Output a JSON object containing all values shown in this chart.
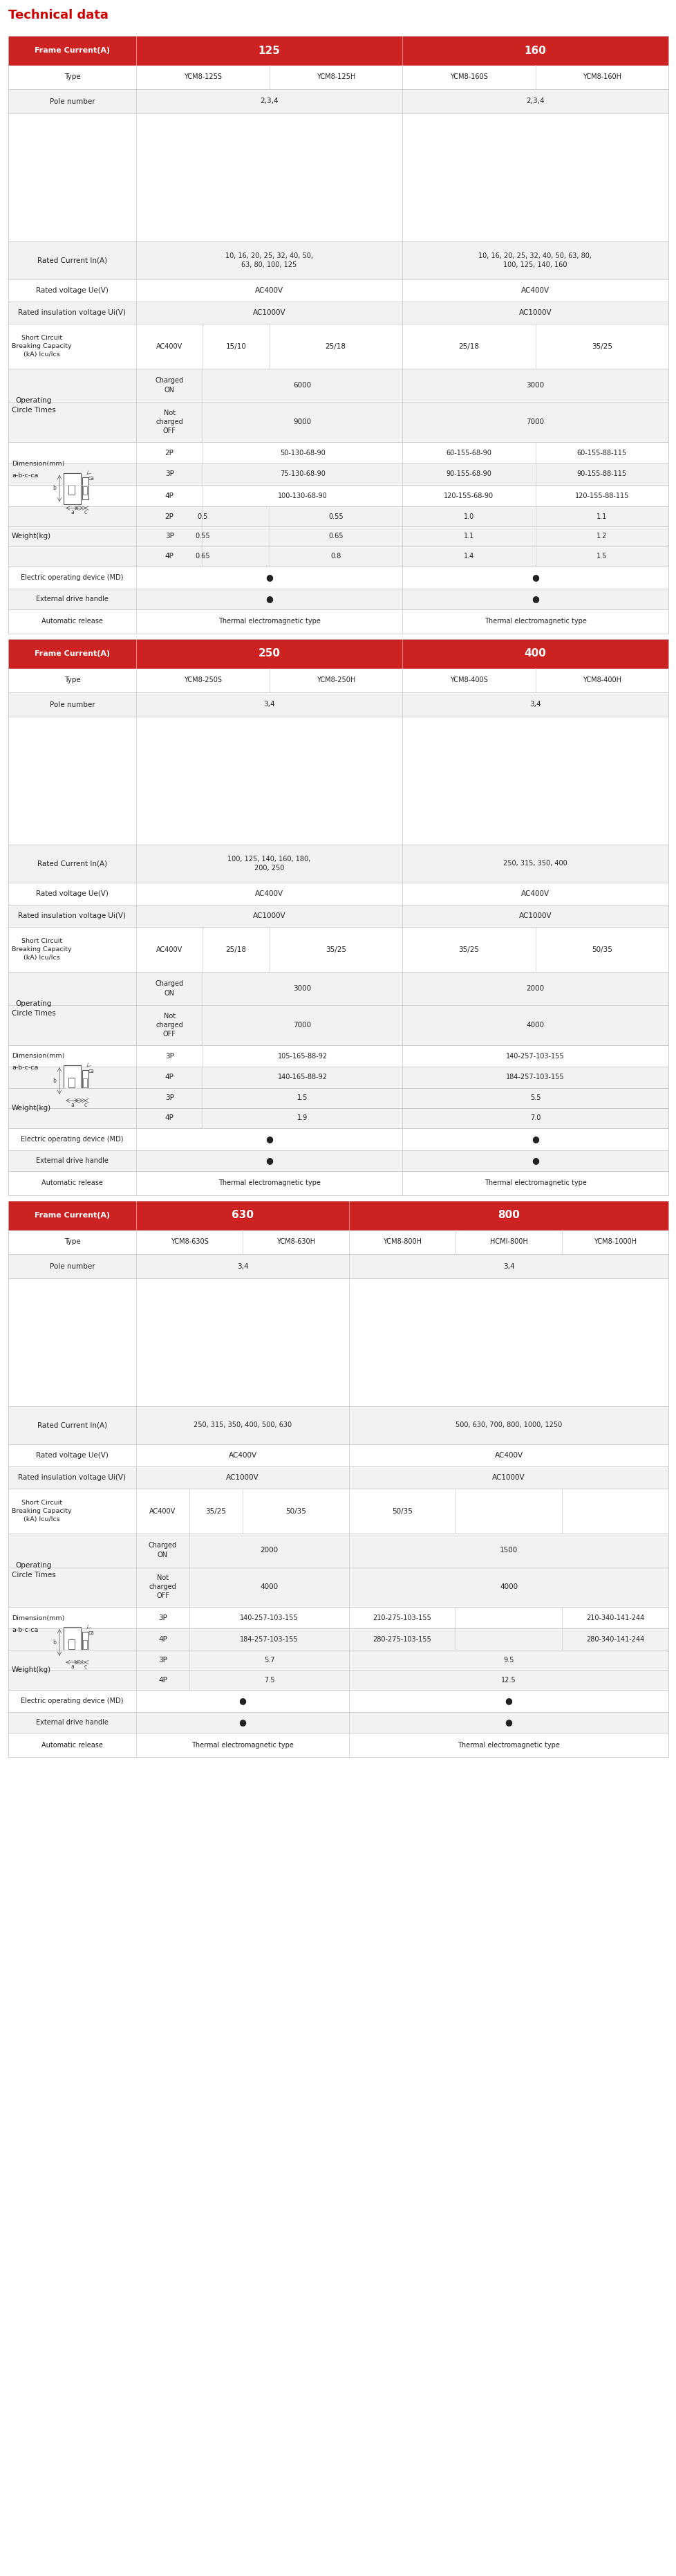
{
  "title": "Technical data",
  "title_color": "#cc0000",
  "header_bg": "#cc2222",
  "header_text_color": "#ffffff",
  "row_alt_color": "#f2f2f2",
  "row_white_color": "#ffffff",
  "border_color": "#cccccc",
  "text_color": "#333333",
  "tables": [
    {
      "frame_labels": [
        "125",
        "160"
      ],
      "frame_col_spans": [
        2,
        2
      ],
      "types": [
        "YCM8-125S",
        "YCM8-125H",
        "YCM8-160S",
        "YCM8-160H"
      ],
      "pole_number_groups": [
        "2,3,4",
        "2,3,4"
      ],
      "rated_current_groups": [
        "10, 16, 20, 25, 32, 40, 50,\n63, 80, 100, 125",
        "10, 16, 20, 25, 32, 40, 50, 63, 80,\n100, 125, 140, 160"
      ],
      "rated_voltage_groups": [
        "AC400V",
        "AC400V"
      ],
      "insulation_voltage_groups": [
        "AC1000V",
        "AC1000V"
      ],
      "sc_sub_label": "AC400V",
      "sc_values": [
        "15/10",
        "25/18",
        "25/18",
        "35/25"
      ],
      "op_charged_groups": [
        "6000",
        "3000"
      ],
      "op_not_charged_groups": [
        "9000",
        "7000"
      ],
      "dim_label_col_span": 1,
      "dim_rows": [
        {
          "pole": "2P",
          "vals": [
            "50-130-68-90",
            "",
            "60-155-68-90",
            "60-155-88-115"
          ]
        },
        {
          "pole": "3P",
          "vals": [
            "75-130-68-90",
            "",
            "90-155-68-90",
            "90-155-88-115"
          ]
        },
        {
          "pole": "4P",
          "vals": [
            "100-130-68-90",
            "",
            "120-155-68-90",
            "120-155-88-115"
          ]
        }
      ],
      "dim_merge_125": true,
      "weight_rows": [
        {
          "pole": "2P",
          "vals": [
            "0.5",
            "0.55",
            "1.0",
            "1.1"
          ]
        },
        {
          "pole": "3P",
          "vals": [
            "0.55",
            "0.65",
            "1.1",
            "1.2"
          ]
        },
        {
          "pole": "4P",
          "vals": [
            "0.65",
            "0.8",
            "1.4",
            "1.5"
          ]
        }
      ],
      "weight_merge_125": false,
      "electric_op_groups": [
        true,
        true
      ],
      "external_drive_groups": [
        true,
        true
      ],
      "auto_release_groups": [
        "Thermal electromagnetic type",
        "Thermal electromagnetic type"
      ]
    },
    {
      "frame_labels": [
        "250",
        "400"
      ],
      "frame_col_spans": [
        2,
        2
      ],
      "types": [
        "YCM8-250S",
        "YCM8-250H",
        "YCM8-400S",
        "YCM8-400H"
      ],
      "pole_number_groups": [
        "3,4",
        "3,4"
      ],
      "rated_current_groups": [
        "100, 125, 140, 160, 180,\n200, 250",
        "250, 315, 350, 400"
      ],
      "rated_voltage_groups": [
        "AC400V",
        "AC400V"
      ],
      "insulation_voltage_groups": [
        "AC1000V",
        "AC1000V"
      ],
      "sc_sub_label": "AC400V",
      "sc_values": [
        "25/18",
        "35/25",
        "35/25",
        "50/35"
      ],
      "op_charged_groups": [
        "3000",
        "2000"
      ],
      "op_not_charged_groups": [
        "7000",
        "4000"
      ],
      "dim_rows": [
        {
          "pole": "3P",
          "vals": [
            "105-165-88-92",
            "",
            "140-257-103-155",
            ""
          ]
        },
        {
          "pole": "4P",
          "vals": [
            "140-165-88-92",
            "",
            "184-257-103-155",
            ""
          ]
        }
      ],
      "dim_merge_125": true,
      "weight_rows": [
        {
          "pole": "3P",
          "vals": [
            "1.5",
            "",
            "5.5",
            ""
          ]
        },
        {
          "pole": "4P",
          "vals": [
            "1.9",
            "",
            "7.0",
            ""
          ]
        }
      ],
      "weight_merge_125": true,
      "electric_op_groups": [
        true,
        true
      ],
      "external_drive_groups": [
        true,
        true
      ],
      "auto_release_groups": [
        "Thermal electromagnetic type",
        "Thermal electromagnetic type"
      ]
    },
    {
      "frame_labels": [
        "630",
        "800"
      ],
      "frame_col_spans": [
        2,
        3
      ],
      "types": [
        "YCM8-630S",
        "YCM8-630H",
        "YCM8-800H",
        "HCMI-800H",
        "YCM8-1000H"
      ],
      "pole_number_groups": [
        "3,4",
        "3,4"
      ],
      "rated_current_groups": [
        "250, 315, 350, 400, 500, 630",
        "500, 630, 700, 800, 1000, 1250"
      ],
      "rated_voltage_groups": [
        "AC400V",
        "AC400V"
      ],
      "insulation_voltage_groups": [
        "AC1000V",
        "AC1000V"
      ],
      "sc_sub_label": "AC400V",
      "sc_values": [
        "35/25",
        "50/35",
        "50/35",
        "",
        ""
      ],
      "op_charged_groups": [
        "2000",
        "1500"
      ],
      "op_not_charged_groups": [
        "4000",
        "4000"
      ],
      "dim_rows": [
        {
          "pole": "3P",
          "vals": [
            "140-257-103-155",
            "",
            "210-275-103-155",
            "",
            "210-340-141-244"
          ]
        },
        {
          "pole": "4P",
          "vals": [
            "184-257-103-155",
            "",
            "280-275-103-155",
            "",
            "280-340-141-244"
          ]
        }
      ],
      "dim_merge_125": true,
      "weight_rows": [
        {
          "pole": "3P",
          "vals": [
            "5.7",
            "",
            "9.5",
            "",
            ""
          ]
        },
        {
          "pole": "4P",
          "vals": [
            "7.5",
            "",
            "12.5",
            "",
            ""
          ]
        }
      ],
      "weight_merge_125": true,
      "electric_op_groups": [
        true,
        true
      ],
      "external_drive_groups": [
        true,
        true
      ],
      "auto_release_groups": [
        "Thermal electromagnetic type",
        "Thermal electromagnetic type"
      ]
    }
  ]
}
